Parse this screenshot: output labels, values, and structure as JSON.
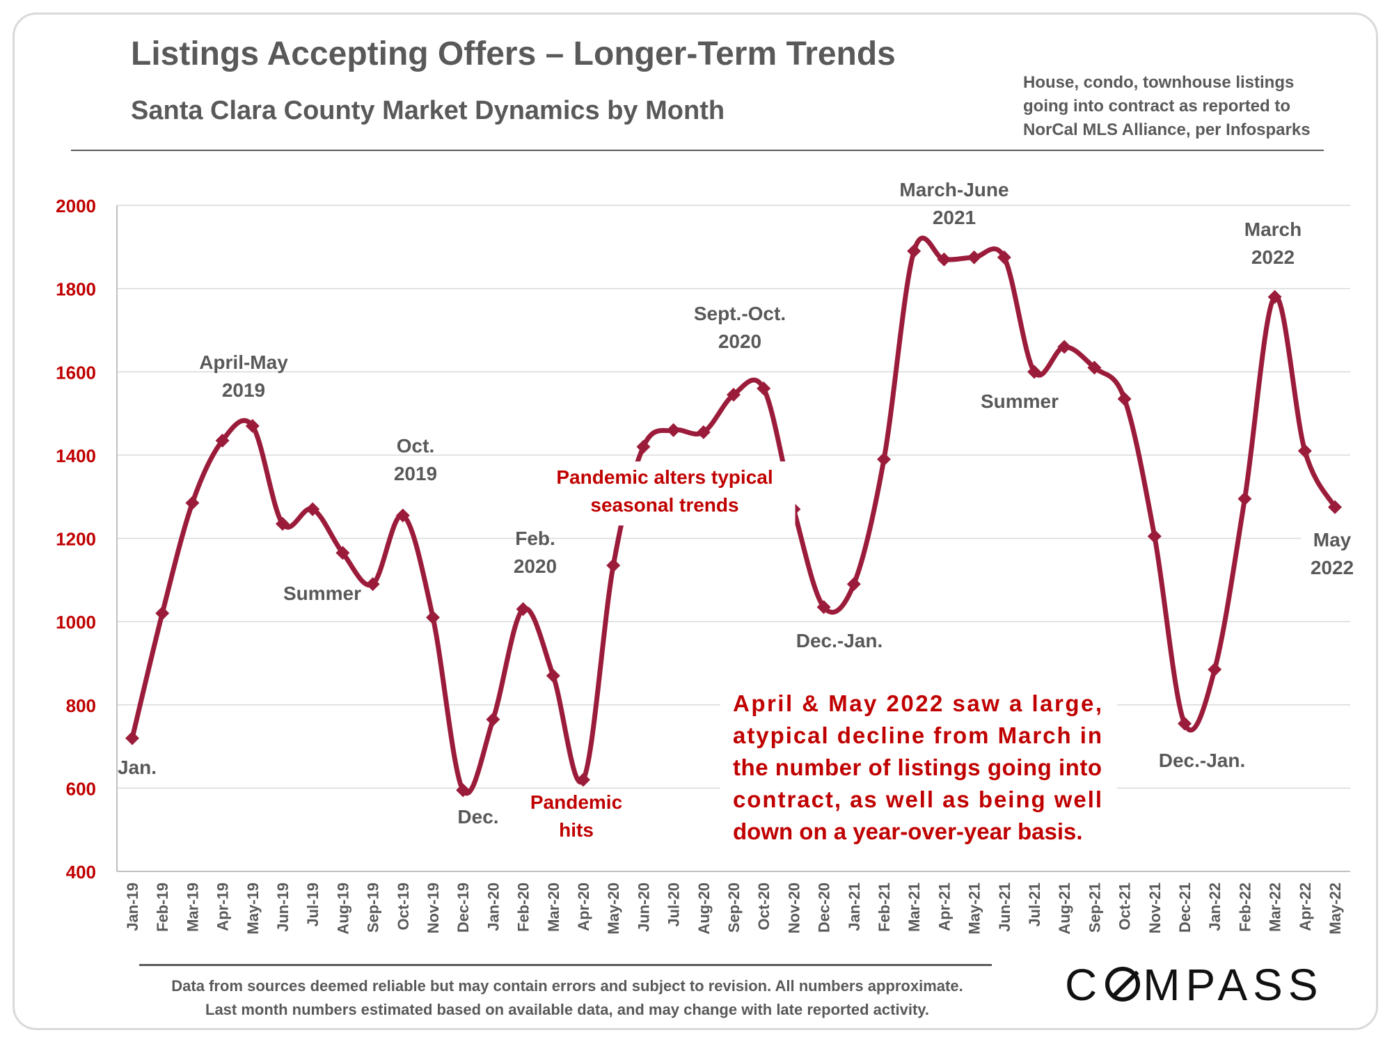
{
  "title": "Listings Accepting Offers – Longer-Term Trends",
  "subtitle": "Santa Clara County Market Dynamics by Month",
  "source_note": "House, condo, townhouse listings\ngoing into contract as reported to\nNorCal MLS Alliance, per Infosparks",
  "footer": {
    "line1": "Data from sources deemed reliable but may contain errors and subject to revision. All numbers approximate.",
    "line2": "Last month numbers estimated based on available data, and may change with late reported activity."
  },
  "logo_text": {
    "before": "C",
    "after": "MPASS"
  },
  "colors": {
    "line": "#9b1c3a",
    "axis_label": "#c00000",
    "annotation": "#595959",
    "highlight": "#c00000",
    "grid": "#d9d9d9"
  },
  "chart_data": {
    "type": "line",
    "ylim": [
      400,
      2000
    ],
    "yticks": [
      400,
      600,
      800,
      1000,
      1200,
      1400,
      1600,
      1800,
      2000
    ],
    "grid": true,
    "categories": [
      "Jan-19",
      "Feb-19",
      "Mar-19",
      "Apr-19",
      "May-19",
      "Jun-19",
      "Jul-19",
      "Aug-19",
      "Sep-19",
      "Oct-19",
      "Nov-19",
      "Dec-19",
      "Jan-20",
      "Feb-20",
      "Mar-20",
      "Apr-20",
      "May-20",
      "Jun-20",
      "Jul-20",
      "Aug-20",
      "Sep-20",
      "Oct-20",
      "Nov-20",
      "Dec-20",
      "Jan-21",
      "Feb-21",
      "Mar-21",
      "Apr-21",
      "May-21",
      "Jun-21",
      "Jul-21",
      "Aug-21",
      "Sep-21",
      "Oct-21",
      "Nov-21",
      "Dec-21",
      "Jan-22",
      "Feb-22",
      "Mar-22",
      "Apr-22",
      "May-22"
    ],
    "series": [
      {
        "values": [
          720,
          1020,
          1285,
          1435,
          1470,
          1235,
          1270,
          1165,
          1090,
          1255,
          1010,
          595,
          765,
          1030,
          870,
          620,
          1135,
          1420,
          1460,
          1455,
          1545,
          1560,
          1270,
          1035,
          1090,
          1390,
          1890,
          1870,
          1875,
          1875,
          1600,
          1660,
          1610,
          1535,
          1205,
          755,
          885,
          1295,
          1780,
          1410,
          1275
        ]
      }
    ],
    "annotations": [
      {
        "lines": [
          "Jan."
        ],
        "style": "normal"
      },
      {
        "lines": [
          "April-May",
          "2019"
        ],
        "style": "normal"
      },
      {
        "lines": [
          "Summer"
        ],
        "style": "normal"
      },
      {
        "lines": [
          "Oct.",
          "2019"
        ],
        "style": "normal"
      },
      {
        "lines": [
          "Dec."
        ],
        "style": "normal"
      },
      {
        "lines": [
          "Feb.",
          "2020"
        ],
        "style": "normal"
      },
      {
        "lines": [
          "Pandemic",
          "hits"
        ],
        "style": "highlight"
      },
      {
        "lines": [
          "Pandemic alters typical",
          "seasonal trends"
        ],
        "style": "highlight"
      },
      {
        "lines": [
          "Sept.-Oct.",
          "2020"
        ],
        "style": "normal"
      },
      {
        "lines": [
          "Dec.-Jan."
        ],
        "style": "normal"
      },
      {
        "lines": [
          "March-June",
          "2021"
        ],
        "style": "normal"
      },
      {
        "lines": [
          "Summer"
        ],
        "style": "normal"
      },
      {
        "lines": [
          "March",
          "2022"
        ],
        "style": "normal"
      },
      {
        "lines": [
          "May",
          "2022"
        ],
        "style": "normal"
      },
      {
        "lines": [
          "Dec.-Jan."
        ],
        "style": "normal"
      }
    ],
    "callout": {
      "lines": [
        "April  & May 2022 saw a large,",
        "atypical decline from March in",
        "the number of listings going into",
        "contract, as well as being well",
        "down on a year-over-year basis."
      ]
    }
  }
}
